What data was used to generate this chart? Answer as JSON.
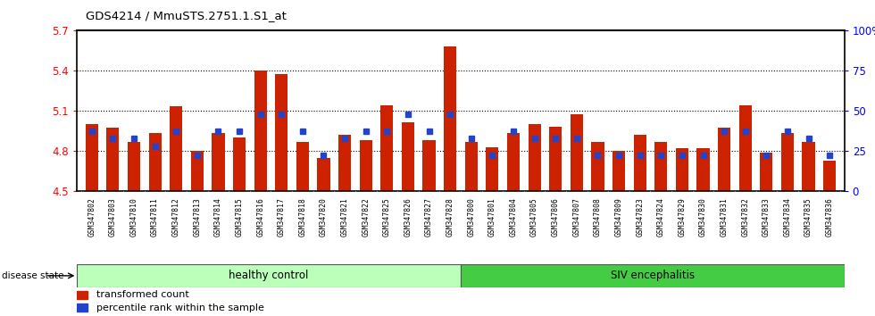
{
  "title": "GDS4214 / MmuSTS.2751.1.S1_at",
  "samples": [
    "GSM347802",
    "GSM347803",
    "GSM347810",
    "GSM347811",
    "GSM347812",
    "GSM347813",
    "GSM347814",
    "GSM347815",
    "GSM347816",
    "GSM347817",
    "GSM347818",
    "GSM347820",
    "GSM347821",
    "GSM347822",
    "GSM347825",
    "GSM347826",
    "GSM347827",
    "GSM347828",
    "GSM347800",
    "GSM347801",
    "GSM347804",
    "GSM347805",
    "GSM347806",
    "GSM347807",
    "GSM347808",
    "GSM347809",
    "GSM347823",
    "GSM347824",
    "GSM347829",
    "GSM347830",
    "GSM347831",
    "GSM347832",
    "GSM347833",
    "GSM347834",
    "GSM347835",
    "GSM347836"
  ],
  "bar_values": [
    5.0,
    4.97,
    4.87,
    4.93,
    5.13,
    4.8,
    4.93,
    4.9,
    5.4,
    5.37,
    4.87,
    4.75,
    4.92,
    4.88,
    5.14,
    5.01,
    4.88,
    5.58,
    4.87,
    4.83,
    4.93,
    5.0,
    4.98,
    5.07,
    4.87,
    4.8,
    4.92,
    4.87,
    4.82,
    4.82,
    4.97,
    5.14,
    4.79,
    4.93,
    4.87,
    4.73
  ],
  "percentile_values": [
    37,
    33,
    33,
    28,
    37,
    22,
    37,
    37,
    48,
    48,
    37,
    22,
    33,
    37,
    37,
    48,
    37,
    48,
    33,
    22,
    37,
    33,
    33,
    33,
    22,
    22,
    22,
    22,
    22,
    22,
    37,
    37,
    22,
    37,
    33,
    22
  ],
  "healthy_control_count": 18,
  "ylim_left": [
    4.5,
    5.7
  ],
  "ylim_right": [
    0,
    100
  ],
  "yticks_left": [
    4.5,
    4.8,
    5.1,
    5.4,
    5.7
  ],
  "yticks_right": [
    0,
    25,
    50,
    75,
    100
  ],
  "ytick_labels_left": [
    "4.5",
    "4.8",
    "5.1",
    "5.4",
    "5.7"
  ],
  "ytick_labels_right": [
    "0",
    "25",
    "50",
    "75",
    "100%"
  ],
  "bar_color": "#cc2200",
  "marker_color": "#2244cc",
  "healthy_color": "#bbffbb",
  "siv_color": "#44cc44",
  "xtick_bg": "#cccccc",
  "bar_width": 0.6,
  "base_value": 4.5
}
